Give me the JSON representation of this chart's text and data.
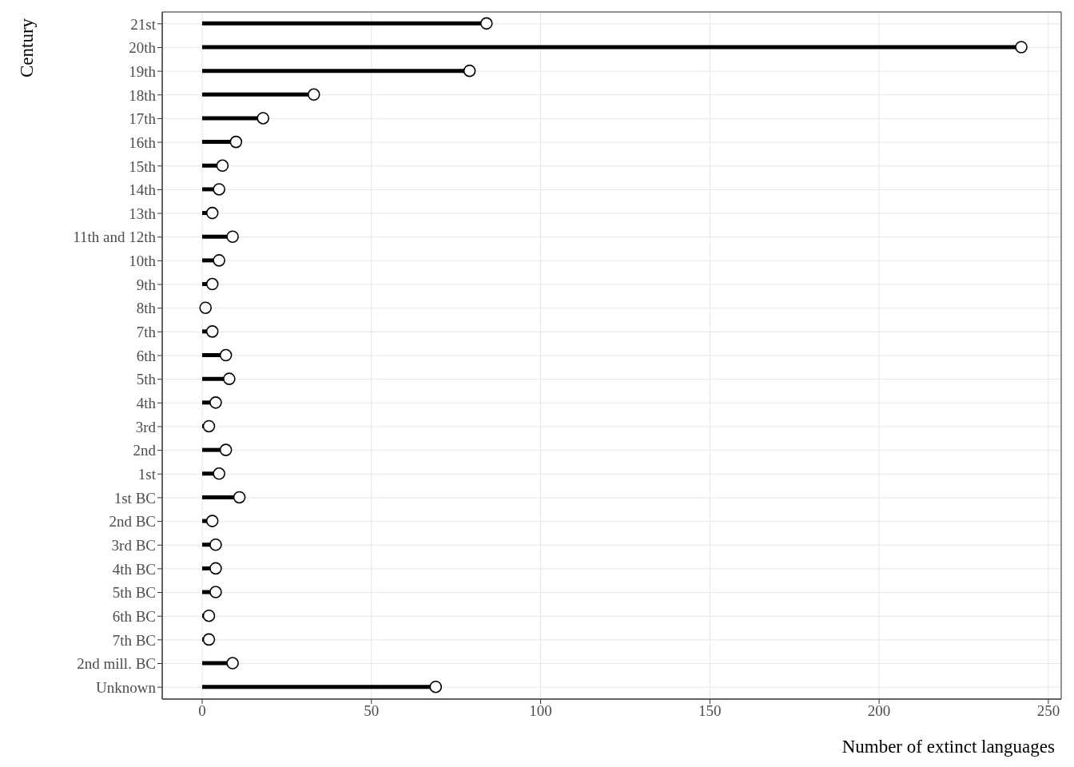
{
  "chart_data": {
    "type": "lollipop",
    "orientation": "horizontal",
    "xlabel": "Number of extinct languages",
    "ylabel": "Century",
    "categories": [
      "21st",
      "20th",
      "19th",
      "18th",
      "17th",
      "16th",
      "15th",
      "14th",
      "13th",
      "11th and 12th",
      "10th",
      "9th",
      "8th",
      "7th",
      "6th",
      "5th",
      "4th",
      "3rd",
      "2nd",
      "1st",
      "1st BC",
      "2nd BC",
      "3rd BC",
      "4th BC",
      "5th BC",
      "6th BC",
      "7th BC",
      "2nd mill. BC",
      "Unknown"
    ],
    "values": [
      84,
      242,
      79,
      33,
      18,
      10,
      6,
      5,
      3,
      9,
      5,
      3,
      1,
      3,
      7,
      8,
      4,
      2,
      7,
      5,
      11,
      3,
      4,
      4,
      4,
      2,
      2,
      9,
      69
    ],
    "color": "#000000",
    "marker": "circle",
    "xlim": [
      -11.8,
      253.8
    ],
    "xticks": [
      0,
      50,
      100,
      150,
      200,
      250
    ],
    "grid": true
  }
}
